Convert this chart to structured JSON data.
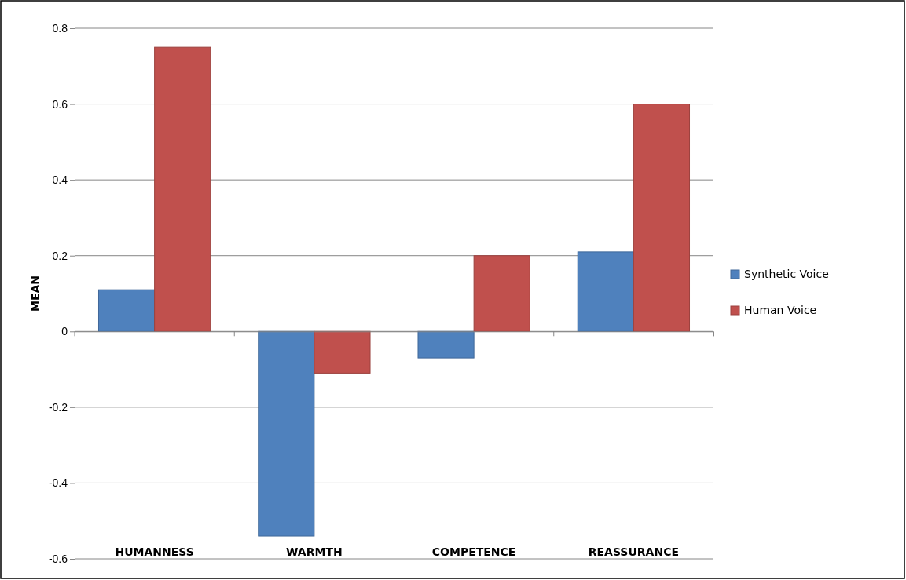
{
  "chart_data": {
    "type": "bar",
    "ylabel": "MEAN",
    "categories": [
      "HUMANNESS",
      "WARMTH",
      "COMPETENCE",
      "REASSURANCE"
    ],
    "series": [
      {
        "name": "Synthetic Voice",
        "color": "#4f81bd",
        "values": [
          0.11,
          -0.54,
          -0.07,
          0.21
        ]
      },
      {
        "name": "Human Voice",
        "color": "#c0504d",
        "values": [
          0.75,
          -0.11,
          0.2,
          0.6
        ]
      }
    ],
    "ylim": [
      -0.6,
      0.8
    ],
    "yticks": [
      -0.6,
      -0.4,
      -0.2,
      0,
      0.2,
      0.4,
      0.6,
      0.8
    ],
    "grid": "y",
    "legend": "right"
  }
}
